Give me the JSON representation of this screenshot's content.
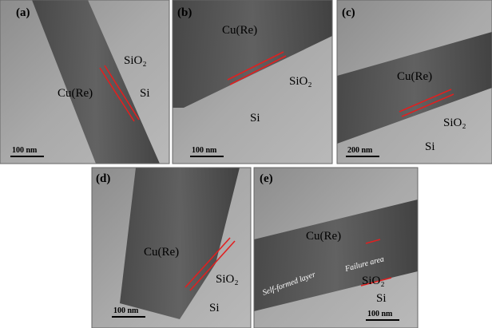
{
  "panels": [
    {
      "label": "(a)",
      "scale_bar": "100 nm",
      "texts": [
        "SiO₂",
        "Cu(Re)",
        "Si"
      ]
    },
    {
      "label": "(b)",
      "scale_bar": "100 nm",
      "texts": [
        "Cu(Re)",
        "SiO₂",
        "Si"
      ]
    },
    {
      "label": "(c)",
      "scale_bar": "200 nm",
      "texts": [
        "Cu(Re)",
        "SiO₂",
        "Si"
      ]
    },
    {
      "label": "(d)",
      "scale_bar": "100 nm",
      "texts": [
        "Cu(Re)",
        "SiO₂",
        "Si"
      ]
    },
    {
      "label": "(e)",
      "scale_bar": "100 nm",
      "texts": [
        "Cu(Re)",
        "Self-formed layer",
        "Failure area",
        "SiO₂",
        "Si"
      ]
    }
  ]
}
